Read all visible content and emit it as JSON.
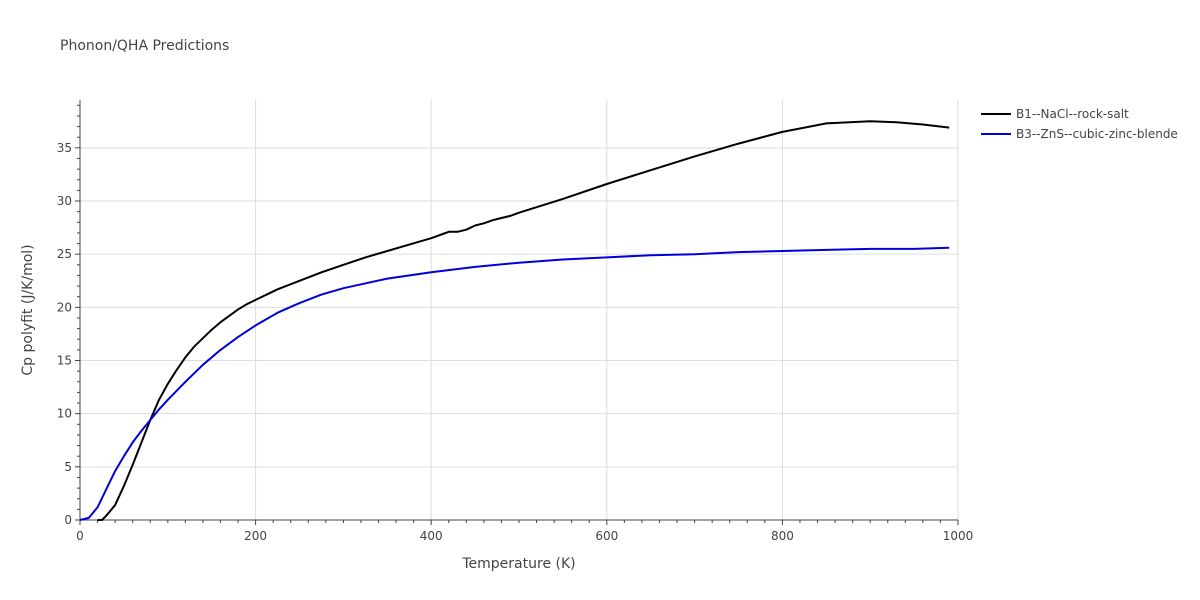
{
  "chart_data": {
    "type": "line",
    "title": "Phonon/QHA Predictions",
    "xlabel": "Temperature (K)",
    "ylabel": "Cp polyfit (J/K/mol)",
    "xlim": [
      0,
      1000
    ],
    "ylim": [
      0,
      39.5
    ],
    "x_ticks": [
      0,
      200,
      400,
      600,
      800,
      1000
    ],
    "y_ticks": [
      0,
      5,
      10,
      15,
      20,
      25,
      30,
      35
    ],
    "grid": true,
    "legend_position": "top-right",
    "series": [
      {
        "name": "B1--NaCl--rock-salt",
        "color": "#000000",
        "x": [
          20,
          25,
          30,
          40,
          50,
          60,
          70,
          80,
          90,
          100,
          110,
          120,
          130,
          140,
          150,
          160,
          170,
          180,
          190,
          200,
          225,
          250,
          275,
          300,
          325,
          350,
          375,
          400,
          410,
          420,
          430,
          440,
          450,
          460,
          470,
          480,
          490,
          500,
          550,
          600,
          650,
          700,
          750,
          800,
          850,
          900,
          930,
          960,
          990
        ],
        "y": [
          0,
          0,
          0.4,
          1.4,
          3.2,
          5.2,
          7.3,
          9.4,
          11.3,
          12.8,
          14.1,
          15.3,
          16.3,
          17.1,
          17.9,
          18.6,
          19.2,
          19.8,
          20.3,
          20.7,
          21.7,
          22.5,
          23.3,
          24.0,
          24.7,
          25.3,
          25.9,
          26.5,
          26.8,
          27.1,
          27.1,
          27.3,
          27.7,
          27.9,
          28.2,
          28.4,
          28.6,
          28.9,
          30.2,
          31.6,
          32.9,
          34.2,
          35.4,
          36.5,
          37.3,
          37.5,
          37.4,
          37.2,
          36.9
        ]
      },
      {
        "name": "B3--ZnS--cubic-zinc-blende",
        "color": "#0000dd",
        "x": [
          0,
          10,
          20,
          30,
          40,
          50,
          60,
          70,
          80,
          90,
          100,
          120,
          140,
          160,
          180,
          200,
          225,
          250,
          275,
          300,
          350,
          400,
          450,
          500,
          550,
          600,
          650,
          700,
          750,
          800,
          850,
          900,
          950,
          990
        ],
        "y": [
          0,
          0.2,
          1.2,
          2.9,
          4.6,
          6.0,
          7.3,
          8.4,
          9.4,
          10.4,
          11.3,
          13.0,
          14.6,
          16.0,
          17.2,
          18.3,
          19.5,
          20.4,
          21.2,
          21.8,
          22.7,
          23.3,
          23.8,
          24.2,
          24.5,
          24.7,
          24.9,
          25.0,
          25.2,
          25.3,
          25.4,
          25.5,
          25.5,
          25.6
        ]
      }
    ]
  }
}
